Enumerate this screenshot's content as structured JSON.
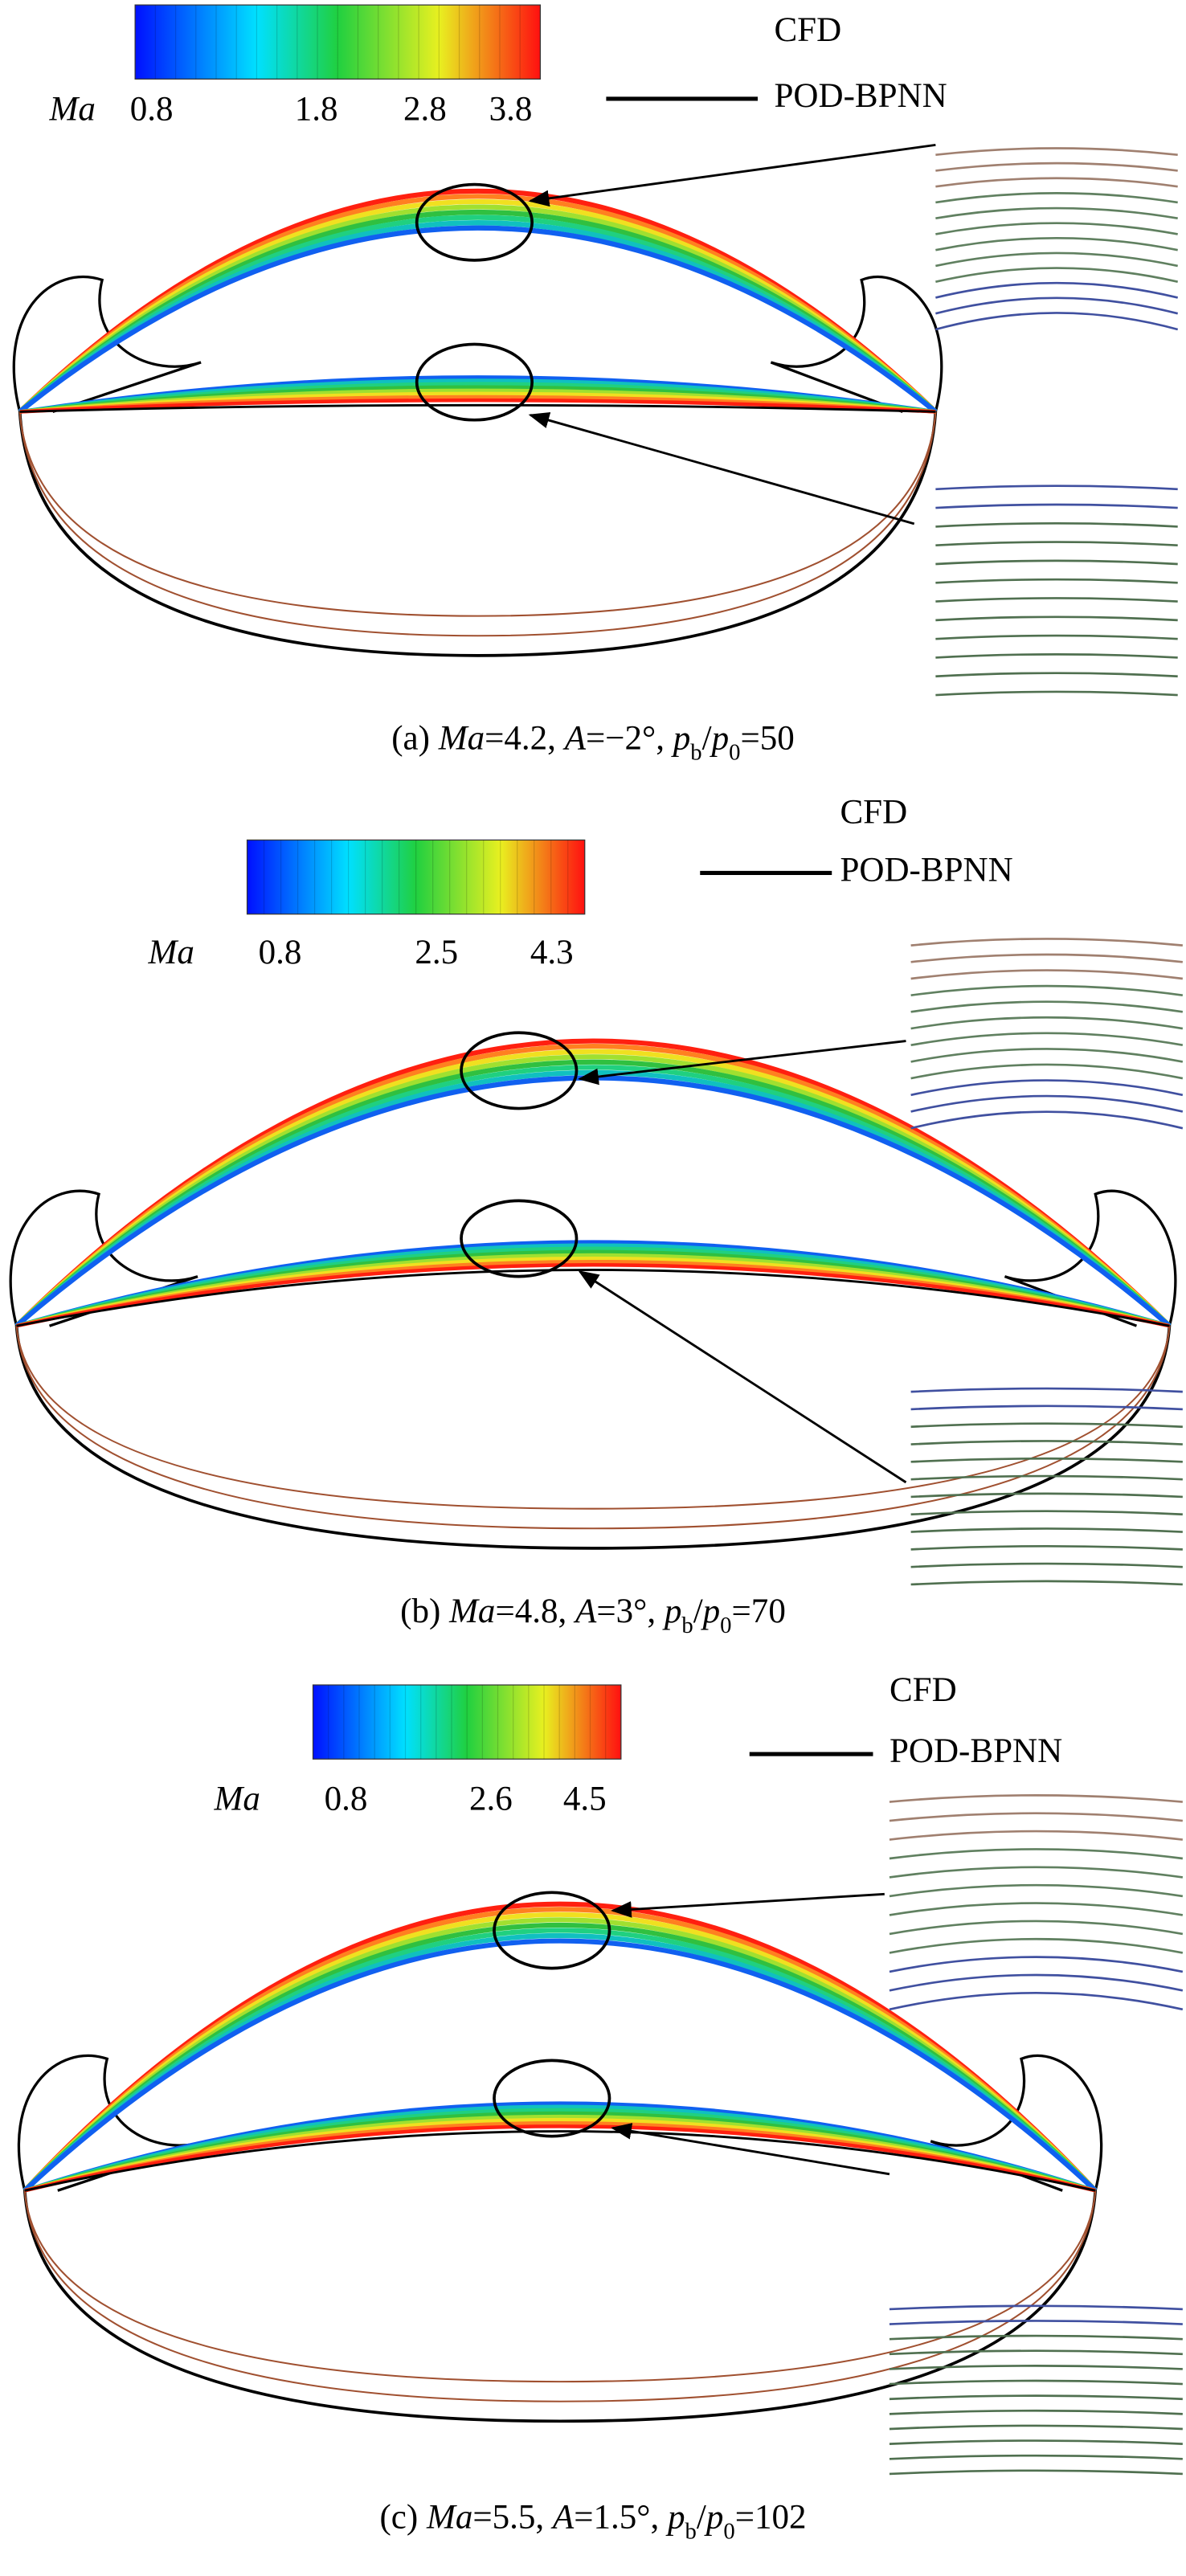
{
  "panels": [
    {
      "colorbar": {
        "label": "Ma",
        "ticks": [
          "0.8",
          "1.8",
          "2.8",
          "3.8"
        ]
      },
      "legend": [
        "CFD",
        "POD-BPNN"
      ],
      "caption": [
        {
          "text": "(a) ",
          "style": "normal"
        },
        {
          "text": "Ma",
          "style": "italic"
        },
        {
          "text": "=4.2, ",
          "style": "normal"
        },
        {
          "text": "A",
          "style": "italic"
        },
        {
          "text": "=−2°, ",
          "style": "normal"
        },
        {
          "text": "p",
          "style": "italic"
        },
        {
          "text": "b",
          "style": "sub"
        },
        {
          "text": "/",
          "style": "normal"
        },
        {
          "text": "p",
          "style": "italic"
        },
        {
          "text": "0",
          "style": "sub"
        },
        {
          "text": "=50",
          "style": "normal"
        }
      ]
    },
    {
      "colorbar": {
        "label": "Ma",
        "ticks": [
          "0.8",
          "2.5",
          "4.3"
        ]
      },
      "legend": [
        "CFD",
        "POD-BPNN"
      ],
      "caption": [
        {
          "text": "(b) ",
          "style": "normal"
        },
        {
          "text": "Ma",
          "style": "italic"
        },
        {
          "text": "=4.8, ",
          "style": "normal"
        },
        {
          "text": "A",
          "style": "italic"
        },
        {
          "text": "=3°, ",
          "style": "normal"
        },
        {
          "text": "p",
          "style": "italic"
        },
        {
          "text": "b",
          "style": "sub"
        },
        {
          "text": "/",
          "style": "normal"
        },
        {
          "text": "p",
          "style": "italic"
        },
        {
          "text": "0",
          "style": "sub"
        },
        {
          "text": "=70",
          "style": "normal"
        }
      ]
    },
    {
      "colorbar": {
        "label": "Ma",
        "ticks": [
          "0.8",
          "2.6",
          "4.5"
        ]
      },
      "legend": [
        "CFD",
        "POD-BPNN"
      ],
      "caption": [
        {
          "text": "(c) ",
          "style": "normal"
        },
        {
          "text": "Ma",
          "style": "italic"
        },
        {
          "text": "=5.5, ",
          "style": "normal"
        },
        {
          "text": "A",
          "style": "italic"
        },
        {
          "text": "=1.5°, ",
          "style": "normal"
        },
        {
          "text": "p",
          "style": "italic"
        },
        {
          "text": "b",
          "style": "sub"
        },
        {
          "text": "/",
          "style": "normal"
        },
        {
          "text": "p",
          "style": "italic"
        },
        {
          "text": "0",
          "style": "sub"
        },
        {
          "text": "=102",
          "style": "normal"
        }
      ]
    }
  ]
}
